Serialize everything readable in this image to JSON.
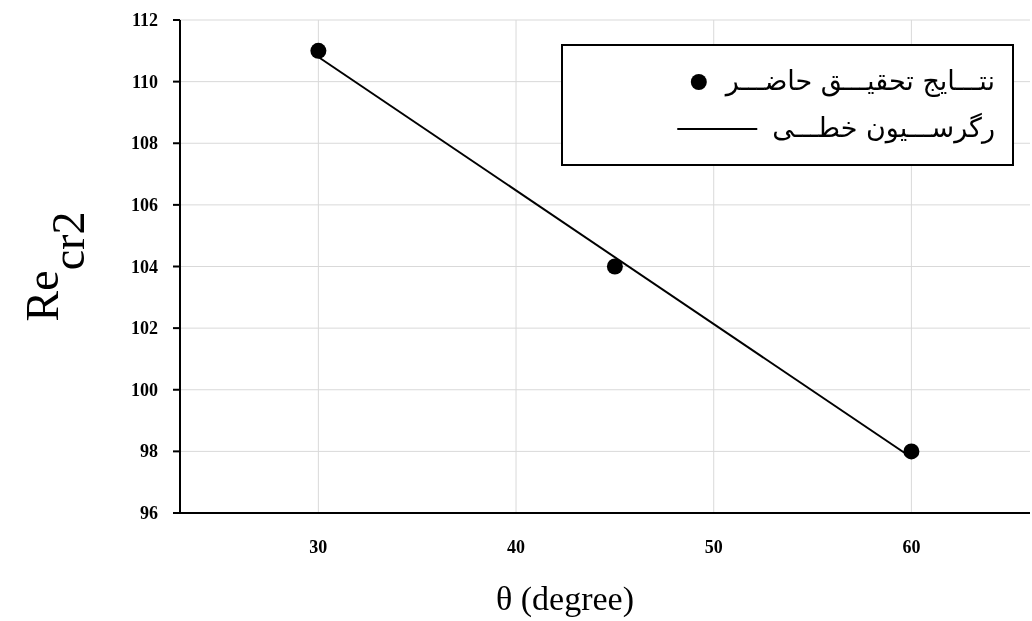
{
  "chart_data": {
    "type": "scatter",
    "xlabel": "θ (degree)",
    "ylabel": "Re$_{cr2}$",
    "xlim": [
      23,
      66
    ],
    "xticks": [
      30,
      40,
      50,
      60
    ],
    "ylim": [
      96,
      112
    ],
    "yticks": [
      96,
      98,
      100,
      102,
      104,
      106,
      108,
      110,
      112
    ],
    "grid": true,
    "legend": "top right",
    "marker": "circle",
    "series": [
      {
        "name": "نتـــایج تحقیـــق حاضـــر",
        "color": "#000000",
        "x": [
          30,
          45,
          60
        ],
        "values": [
          111,
          104,
          98
        ]
      },
      {
        "name": "رگرســـیون خطـــی",
        "type": "line",
        "line_style": "solid",
        "marker": "none",
        "color": "#000000",
        "x": [
          30,
          60
        ],
        "values": [
          110.8,
          97.8
        ]
      }
    ]
  }
}
